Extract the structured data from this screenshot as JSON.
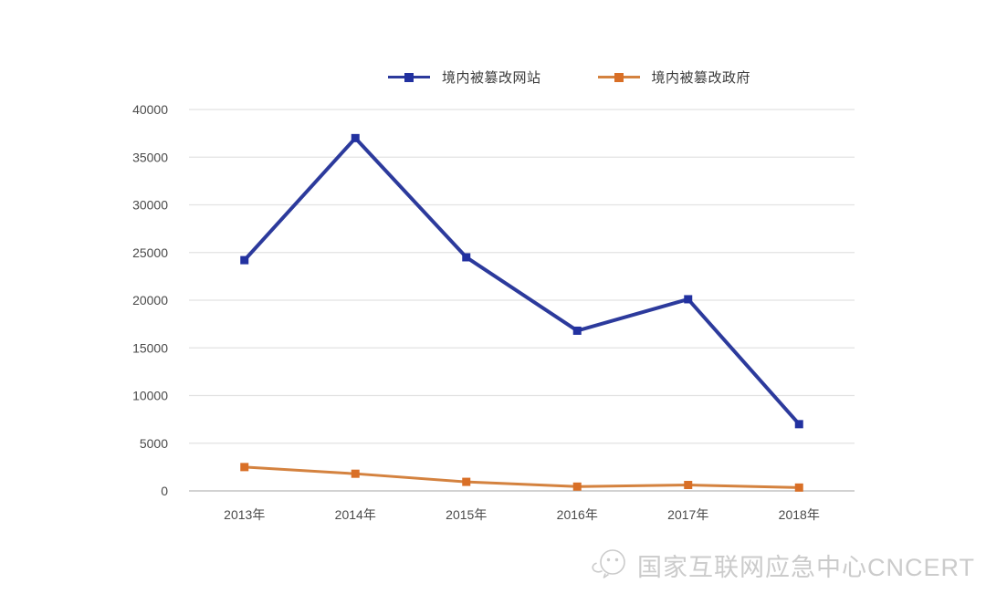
{
  "chart_data": {
    "type": "line",
    "title": "",
    "xlabel": "",
    "ylabel": "",
    "categories": [
      "2013年",
      "2014年",
      "2015年",
      "2016年",
      "2017年",
      "2018年"
    ],
    "series": [
      {
        "name": "境内被篡改网站",
        "marker": "square",
        "line_color": "#2c3a9c",
        "marker_color": "#2231a0",
        "values": [
          24200,
          37000,
          24500,
          16800,
          20100,
          7000
        ]
      },
      {
        "name": "境内被篡改政府",
        "marker": "square",
        "line_color": "#d4823f",
        "marker_color": "#d96f26",
        "values": [
          2500,
          1800,
          950,
          450,
          620,
          350
        ]
      }
    ],
    "ylim": [
      0,
      40000
    ],
    "yticks": [
      0,
      5000,
      10000,
      15000,
      20000,
      25000,
      30000,
      35000,
      40000
    ],
    "grid": "horizontal-only",
    "gridline_color": "#e2e2e2",
    "zero_line_color": "#c4c4c4",
    "legend_position": "top-center"
  },
  "watermark": {
    "icon": "wechat-official-account-icon",
    "text": "国家互联网应急中心CNCERT",
    "color": "#cbcbcb"
  }
}
